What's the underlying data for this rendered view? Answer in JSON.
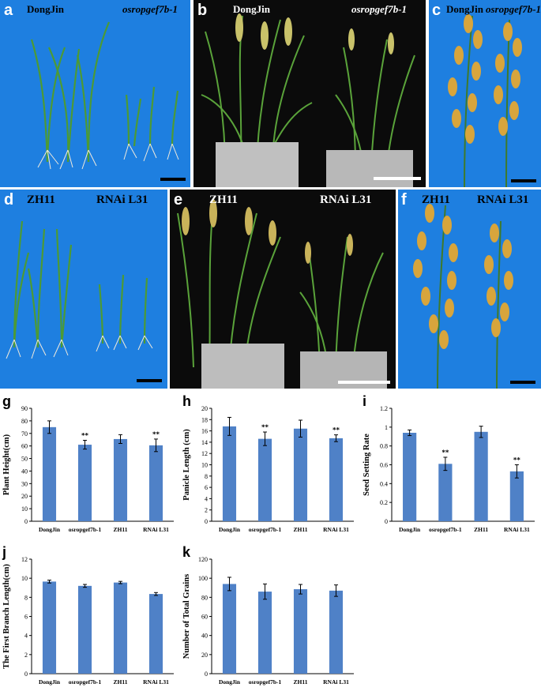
{
  "panels": {
    "a": {
      "label": "a",
      "left_text": "DongJin",
      "right_text": "osropgef7b-1"
    },
    "b": {
      "label": "b",
      "left_text": "DongJin",
      "right_text": "osropgef7b-1"
    },
    "c": {
      "label": "c",
      "left_text": "DongJin",
      "right_text": "osropgef7b-1"
    },
    "d": {
      "label": "d",
      "left_text": "ZH11",
      "right_text": "RNAi L31"
    },
    "e": {
      "label": "e",
      "left_text": "ZH11",
      "right_text": "RNAi L31"
    },
    "f": {
      "label": "f",
      "left_text": "ZH11",
      "right_text": "RNAi L31"
    }
  },
  "colors": {
    "photo_blue": "#1e7fe0",
    "photo_black": "#0b0b0b",
    "bar_fill": "#4f81c7",
    "plant_green": "#3f8f2a",
    "panicle_gold": "#d8a53c",
    "scalebar_black": "#000000",
    "scalebar_white": "#ffffff"
  },
  "chart_data": [
    {
      "panel": "g",
      "type": "bar",
      "categories": [
        "DongJin",
        "osropgef7b-1",
        "ZH11",
        "RNAi L31"
      ],
      "values": [
        75,
        61,
        65.5,
        60.5
      ],
      "errors": [
        5,
        3.5,
        3.5,
        5
      ],
      "annotations": [
        "",
        "**",
        "",
        "**"
      ],
      "ylabel": "Plant Height(cm)",
      "ylim": [
        0,
        90
      ],
      "yticks": [
        "0",
        "10",
        "20",
        "30",
        "40",
        "50",
        "60",
        "70",
        "80",
        "90"
      ]
    },
    {
      "panel": "h",
      "type": "bar",
      "categories": [
        "DongJin",
        "osropgef7b-1",
        "ZH11",
        "RNAi L31"
      ],
      "values": [
        16.8,
        14.6,
        16.4,
        14.7
      ],
      "errors": [
        1.6,
        1.2,
        1.5,
        0.6
      ],
      "annotations": [
        "",
        "**",
        "",
        "**"
      ],
      "ylabel": "Panicle Length (cm)",
      "ylim": [
        0,
        20
      ],
      "yticks": [
        "0",
        "2",
        "4",
        "6",
        "8",
        "10",
        "12",
        "14",
        "16",
        "18",
        "20"
      ]
    },
    {
      "panel": "i",
      "type": "bar",
      "categories": [
        "DongJin",
        "osropgef7b-1",
        "ZH11",
        "RNAi L31"
      ],
      "values": [
        0.94,
        0.61,
        0.95,
        0.53
      ],
      "errors": [
        0.03,
        0.07,
        0.06,
        0.07
      ],
      "annotations": [
        "",
        "**",
        "",
        "**"
      ],
      "ylabel": "Seed Setting Rate",
      "ylim": [
        0,
        1.2
      ],
      "yticks": [
        "0",
        "0.2",
        "0.4",
        "0.6",
        "0.8",
        "1",
        "1.2"
      ]
    },
    {
      "panel": "j",
      "type": "bar",
      "categories": [
        "DongJin",
        "osropgef7b-1",
        "ZH11",
        "RNAi L31"
      ],
      "values": [
        9.65,
        9.2,
        9.55,
        8.35
      ],
      "errors": [
        0.15,
        0.15,
        0.12,
        0.15
      ],
      "annotations": [
        "",
        "",
        "",
        ""
      ],
      "ylabel": "The First Branch Length(cm)",
      "ylim": [
        0,
        12
      ],
      "yticks": [
        "0",
        "2",
        "4",
        "6",
        "8",
        "10",
        "12"
      ]
    },
    {
      "panel": "k",
      "type": "bar",
      "categories": [
        "DongJin",
        "osropgef7b-1",
        "ZH11",
        "RNAi L31"
      ],
      "values": [
        94,
        86,
        88.5,
        87
      ],
      "errors": [
        7,
        8,
        5,
        6
      ],
      "annotations": [
        "",
        "",
        "",
        ""
      ],
      "ylabel": "Number of Total Grains",
      "ylim": [
        0,
        120
      ],
      "yticks": [
        "0",
        "20",
        "40",
        "60",
        "80",
        "100",
        "120"
      ]
    }
  ]
}
